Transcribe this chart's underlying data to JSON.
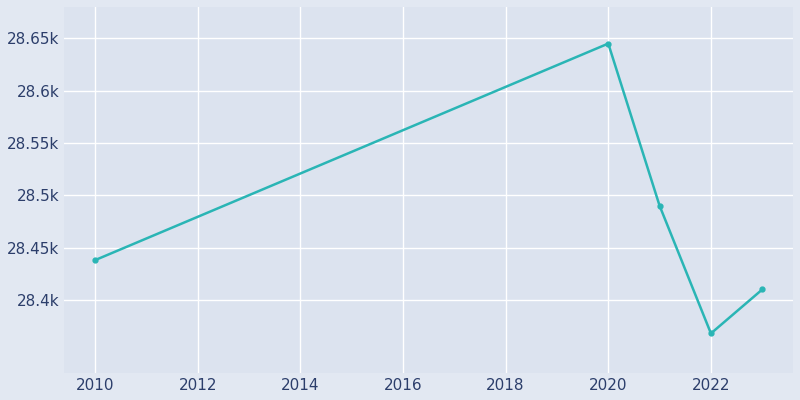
{
  "years": [
    2010,
    2020,
    2021,
    2022,
    2023
  ],
  "population": [
    28438,
    28645,
    28490,
    28368,
    28410
  ],
  "line_color": "#2ab5b5",
  "marker_color": "#2ab5b5",
  "background_color": "#e2e8f2",
  "axes_background": "#dce3ef",
  "grid_color": "#ffffff",
  "text_color": "#2c3e6b",
  "ylim": [
    28330,
    28680
  ],
  "xlim": [
    2009.4,
    2023.6
  ],
  "yticks": [
    28400,
    28450,
    28500,
    28550,
    28600,
    28650
  ],
  "xticks": [
    2010,
    2012,
    2014,
    2016,
    2018,
    2020,
    2022
  ],
  "figsize": [
    8.0,
    4.0
  ],
  "dpi": 100
}
